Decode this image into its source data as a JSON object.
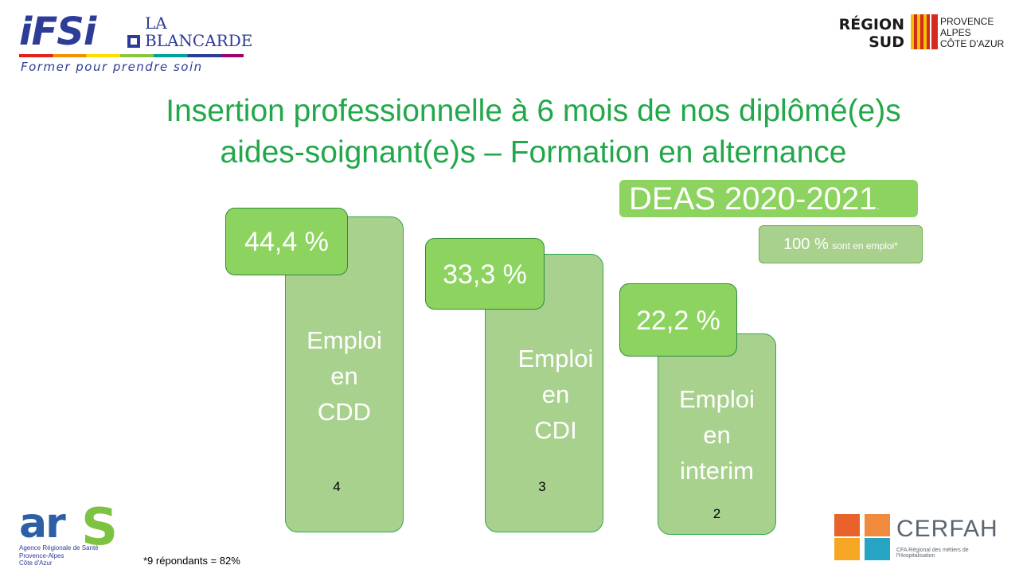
{
  "logos": {
    "ifsi": {
      "name": "iFSi",
      "sub_line1": "LA",
      "sub_line2": "BLANCARDE",
      "tagline": "Former pour prendre soin"
    },
    "region": {
      "line1": "RÉGION",
      "line2": "SUD",
      "province_1": "PROVENCE",
      "province_2": "ALPES",
      "province_3": "CÔTE D'AZUR"
    },
    "ars": {
      "name": "ar",
      "s": "S",
      "line1": "Agence Régionale de Santé",
      "line2": "Provence-Alpes",
      "line3": "Côte d'Azur"
    },
    "cerfah": {
      "name": "CERFAH",
      "subtitle": "CFA Régional des métiers de l'Hospitalisation"
    }
  },
  "title_line1": "Insertion professionnelle à 6 mois de nos diplômé(e)s",
  "title_line2": "aides-soignant(e)s – Formation en alternance",
  "deas_badge": "DEAS 2020-2021",
  "deas_dot": ".",
  "employment_badge": {
    "percent": "100 %",
    "label": "sont en emploi*"
  },
  "chart_data": {
    "type": "bar",
    "categories": [
      "Emploi en CDD",
      "Emploi en CDI",
      "Emploi en interim"
    ],
    "values": [
      44.4,
      33.3,
      22.2
    ],
    "counts": [
      4,
      3,
      2
    ],
    "percent_labels": [
      "44,4 %",
      "33,3 %",
      "22,2 %"
    ],
    "bar_labels": [
      [
        "Emploi",
        "en",
        "CDD"
      ],
      [
        "Emploi",
        "en",
        "CDI"
      ],
      [
        "Emploi",
        "en",
        "interim"
      ]
    ]
  },
  "bars": {
    "cdd": {
      "pct": "44,4 %",
      "l1": "Emploi",
      "l2": "en",
      "l3": "CDD",
      "count": "4"
    },
    "cdi": {
      "pct": "33,3 %",
      "l1": "Emploi",
      "l2": "en",
      "l3": "CDI",
      "count": "3"
    },
    "int": {
      "pct": "22,2 %",
      "l1": "Emploi",
      "l2": "en",
      "l3": "interim",
      "count": "2"
    }
  },
  "footnote": "*9 répondants = 82%",
  "colors": {
    "title": "#22a84a",
    "badge_green": "#8dd35f",
    "bar_green": "#a9d18e",
    "ifsi_blue": "#2d3c97"
  }
}
